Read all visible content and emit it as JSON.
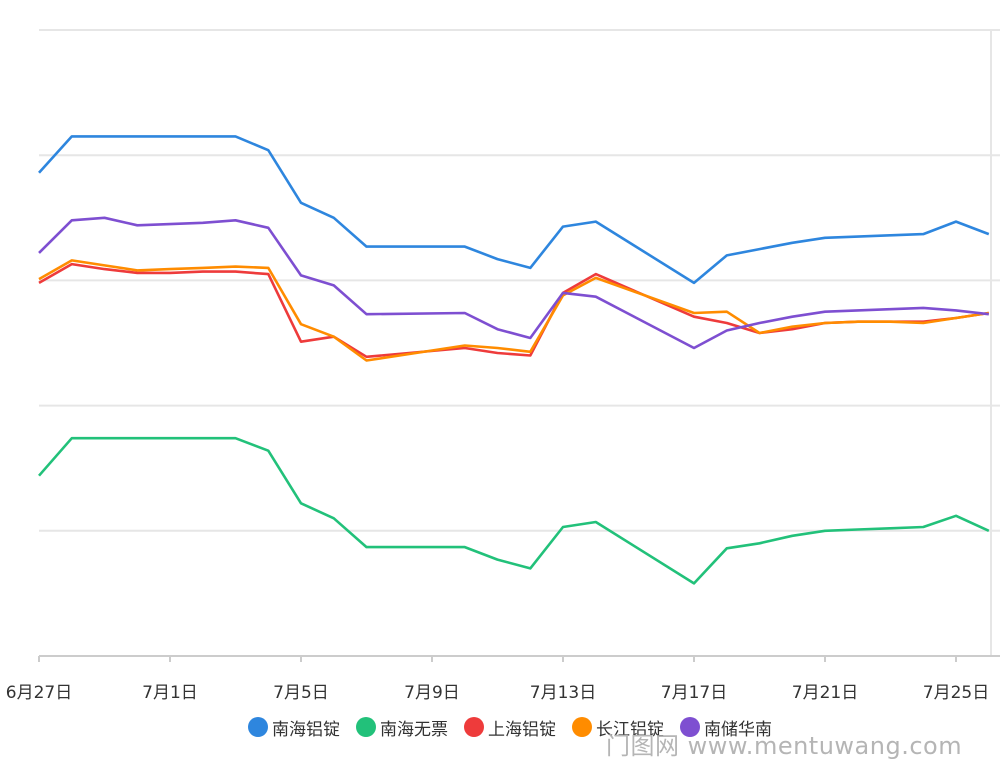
{
  "chart_data": {
    "type": "line",
    "x": [
      "6月27日",
      "6月28日",
      "6月29日",
      "6月30日",
      "7月1日",
      "7月2日",
      "7月3日",
      "7月4日",
      "7月5日",
      "7月6日",
      "7月7日",
      "7月8日",
      "7月9日",
      "7月10日",
      "7月11日",
      "7月12日",
      "7月13日",
      "7月14日",
      "7月15日",
      "7月16日",
      "7月17日",
      "7月18日",
      "7月19日",
      "7月20日",
      "7月21日",
      "7月22日",
      "7月23日",
      "7月24日",
      "7月25日",
      "7月26日"
    ],
    "tick_labels": [
      "6月27日",
      "7月1日",
      "7月5日",
      "7月9日",
      "7月13日",
      "7月17日",
      "7月21日",
      "7月25日"
    ],
    "ylim": [
      0,
      5
    ],
    "y_gridlines": [
      1,
      2,
      3,
      4,
      5
    ],
    "y_tick_labels_visible": false,
    "grid": true,
    "legend_position": "bottom",
    "series": [
      {
        "name": "南海铝锭",
        "color": "#2e86de",
        "values": [
          3.86,
          4.15,
          4.15,
          4.15,
          4.15,
          4.15,
          4.15,
          4.04,
          3.62,
          3.5,
          3.27,
          null,
          null,
          3.27,
          3.17,
          3.1,
          3.43,
          3.47,
          null,
          null,
          2.98,
          3.2,
          3.25,
          3.3,
          3.34,
          3.35,
          3.36,
          3.37,
          3.47,
          3.37
        ]
      },
      {
        "name": "南海无票",
        "color": "#22c17a",
        "values": [
          1.44,
          1.74,
          1.74,
          1.74,
          1.74,
          1.74,
          1.74,
          1.64,
          1.22,
          1.1,
          0.87,
          null,
          null,
          0.87,
          0.77,
          0.7,
          1.03,
          1.07,
          null,
          null,
          0.58,
          0.86,
          0.9,
          0.96,
          1.0,
          1.01,
          1.02,
          1.03,
          1.12,
          1.0
        ]
      },
      {
        "name": "上海铝锭",
        "color": "#ee3b3b",
        "values": [
          2.98,
          3.13,
          3.09,
          3.06,
          3.06,
          3.07,
          3.07,
          3.05,
          2.51,
          2.55,
          2.39,
          null,
          null,
          2.46,
          2.42,
          2.4,
          2.9,
          3.05,
          null,
          null,
          2.71,
          2.66,
          2.58,
          2.61,
          2.66,
          2.67,
          2.67,
          2.67,
          2.7,
          2.74
        ]
      },
      {
        "name": "长江铝锭",
        "color": "#ff8c00",
        "values": [
          3.01,
          3.16,
          3.12,
          3.08,
          3.09,
          3.1,
          3.11,
          3.1,
          2.65,
          2.55,
          2.36,
          null,
          null,
          2.48,
          2.46,
          2.43,
          2.88,
          3.02,
          null,
          null,
          2.74,
          2.75,
          2.58,
          2.63,
          2.66,
          2.67,
          2.67,
          2.66,
          2.7,
          2.74
        ]
      },
      {
        "name": "南储华南",
        "color": "#7e4fd1",
        "values": [
          3.22,
          3.48,
          3.5,
          3.44,
          3.45,
          3.46,
          3.48,
          3.42,
          3.04,
          2.96,
          2.73,
          null,
          null,
          2.74,
          2.61,
          2.54,
          2.9,
          2.87,
          null,
          null,
          2.46,
          2.6,
          2.66,
          2.71,
          2.75,
          2.76,
          2.77,
          2.78,
          2.76,
          2.73
        ]
      }
    ]
  },
  "watermark": "门图网 www.mentuwang.com"
}
